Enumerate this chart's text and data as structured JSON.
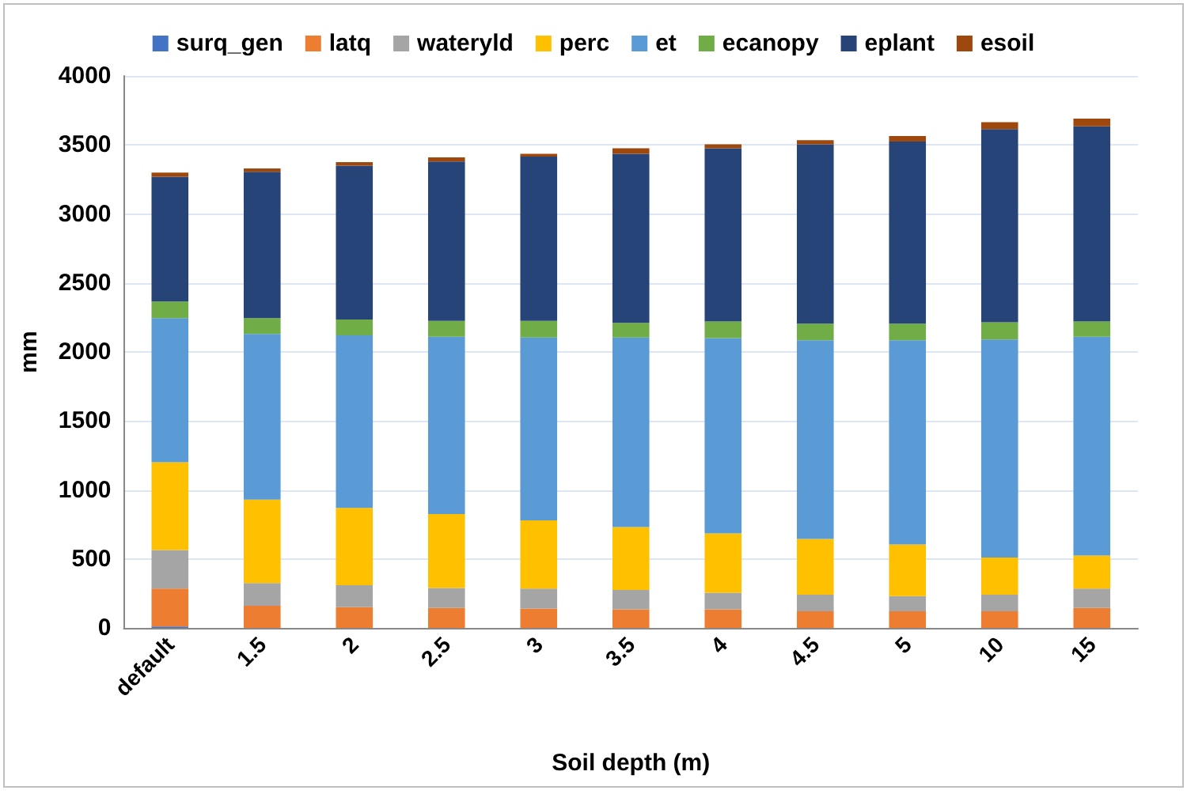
{
  "chart_data": {
    "type": "bar",
    "stacked": true,
    "xlabel": "Soil depth (m)",
    "ylabel": "mm",
    "categories": [
      "default",
      "1.5",
      "2",
      "2.5",
      "3",
      "3.5",
      "4",
      "4.5",
      "5",
      "10",
      "15"
    ],
    "series": [
      {
        "name": "surq_gen",
        "color": "#4472c4",
        "values": [
          10,
          null,
          null,
          null,
          null,
          null,
          null,
          null,
          null,
          null,
          null
        ]
      },
      {
        "name": "latq",
        "color": "#ed7d31",
        "values": [
          275,
          160,
          150,
          145,
          140,
          135,
          135,
          120,
          120,
          120,
          145
        ]
      },
      {
        "name": "wateryld",
        "color": "#a5a5a5",
        "values": [
          280,
          165,
          160,
          145,
          145,
          140,
          120,
          120,
          110,
          120,
          140
        ]
      },
      {
        "name": "perc",
        "color": "#ffc000",
        "values": [
          635,
          605,
          560,
          535,
          495,
          455,
          430,
          405,
          375,
          270,
          240
        ]
      },
      {
        "name": "et",
        "color": "#5b9bd5",
        "values": [
          1045,
          1200,
          1250,
          1285,
          1325,
          1375,
          1415,
          1440,
          1480,
          1580,
          1585
        ]
      },
      {
        "name": "ecanopy",
        "color": "#70ad47",
        "values": [
          120,
          115,
          115,
          115,
          120,
          105,
          120,
          120,
          120,
          125,
          110
        ]
      },
      {
        "name": "eplant",
        "color": "#264478",
        "values": [
          905,
          1060,
          1115,
          1155,
          1190,
          1225,
          1255,
          1300,
          1320,
          1400,
          1415
        ]
      },
      {
        "name": "esoil",
        "color": "#9e480e",
        "values": [
          30,
          25,
          25,
          30,
          20,
          40,
          30,
          30,
          40,
          50,
          55
        ]
      }
    ],
    "ylim": [
      0,
      4000
    ],
    "yticks": [
      0,
      500,
      1000,
      1500,
      2000,
      2500,
      3000,
      3500,
      4000
    ],
    "grid": "y",
    "legend": "top"
  }
}
